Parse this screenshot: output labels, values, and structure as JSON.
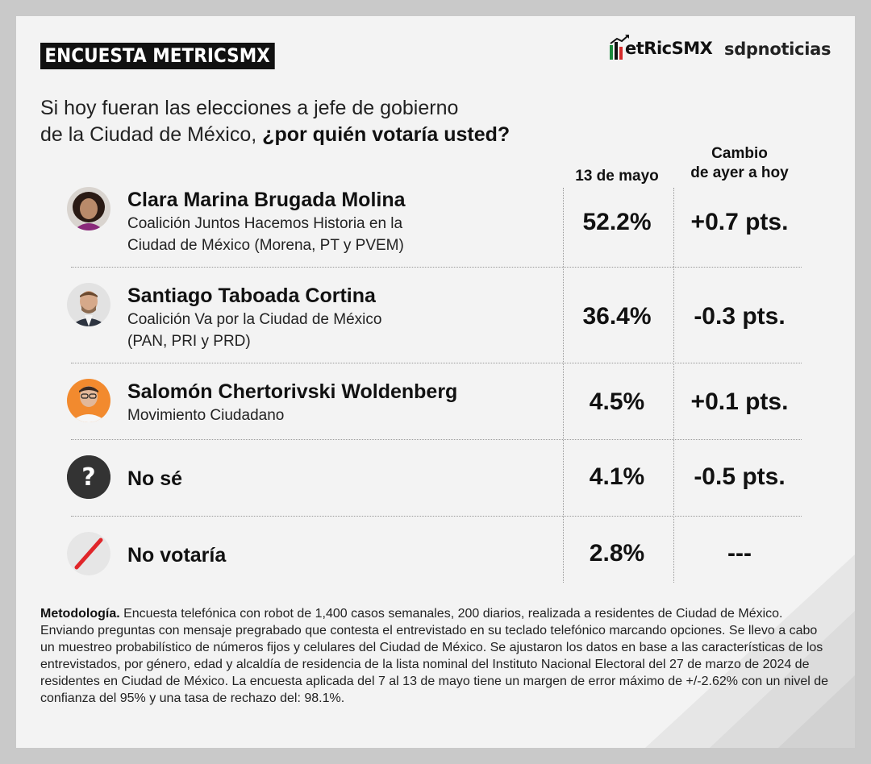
{
  "header": {
    "badge": "ENCUESTA METRICSMX",
    "logo_metrics": "etRicSMX",
    "logo_sdp": "sdpnoticias"
  },
  "question": {
    "line1": "Si hoy fueran las elecciones a jefe de gobierno",
    "line2_plain": "de la Ciudad de México, ",
    "line2_bold": "¿por quién votaría usted?"
  },
  "columns": {
    "date": "13 de mayo",
    "change_line1": "Cambio",
    "change_line2": "de ayer a hoy"
  },
  "rows": [
    {
      "name": "Clara Marina Brugada Molina",
      "coalition_line1": "Coalición Juntos Hacemos Historia en la",
      "coalition_line2": "Ciudad de México (Morena, PT y PVEM)",
      "pct": "52.2%",
      "change": "+0.7 pts."
    },
    {
      "name": "Santiago Taboada Cortina",
      "coalition_line1": "Coalición Va por la Ciudad de México",
      "coalition_line2": "(PAN, PRI y PRD)",
      "pct": "36.4%",
      "change": "-0.3 pts."
    },
    {
      "name": "Salomón Chertorivski Woldenberg",
      "coalition_line1": "Movimiento Ciudadano",
      "pct": "4.5%",
      "change": "+0.1 pts."
    },
    {
      "name": "No sé",
      "pct": "4.1%",
      "change": "-0.5 pts."
    },
    {
      "name": "No votaría",
      "pct": "2.8%",
      "change": "---"
    }
  ],
  "methodology": {
    "label": "Metodología.",
    "text": " Encuesta telefónica con robot de 1,400 casos semanales, 200 diarios, realizada a residentes de Ciudad de México. Enviando preguntas con mensaje pregrabado que contesta el entrevistado en su teclado telefónico marcando opciones. Se llevo a cabo un muestreo probabilístico de números fijos y celulares del Ciudad de México. Se ajustaron los datos en base a las características de los entrevistados, por género, edad y alcaldía de residencia de la lista nominal del Instituto Nacional Electoral del 27 de marzo de 2024 de residentes en Ciudad de México. La encuesta aplicada del 7 al 13 de mayo tiene un margen de error máximo de +/-2.62% con un nivel de confianza del 95% y una tasa de rechazo del: 98.1%."
  },
  "colors": {
    "badge_bg": "#111111",
    "mx_green": "#1a8a3c",
    "mx_red": "#d42b2b",
    "slash_red": "#e0262a",
    "unknown_icon": "#333333",
    "mc_orange": "#f28a2e"
  }
}
